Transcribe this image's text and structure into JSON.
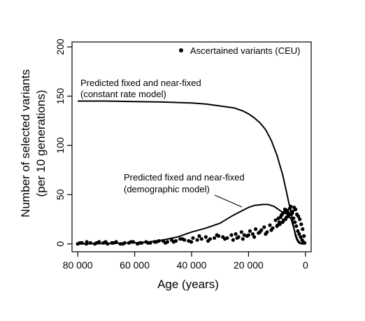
{
  "chart_data": {
    "type": "scatter",
    "title": "",
    "xlabel": "Age (years)",
    "ylabel": [
      "Number of selected variants",
      "(per 10 generations)"
    ],
    "xlim": [
      82000,
      -2000
    ],
    "ylim": [
      -8,
      205
    ],
    "x_reversed": true,
    "grid": false,
    "legend": {
      "position": "top-right",
      "entries": [
        "Ascertained variants (CEU)"
      ]
    },
    "x_ticks": [
      {
        "value": 80000,
        "label": "80 000"
      },
      {
        "value": 60000,
        "label": "60 000"
      },
      {
        "value": 40000,
        "label": "40 000"
      },
      {
        "value": 20000,
        "label": "20 000"
      },
      {
        "value": 0,
        "label": "0"
      }
    ],
    "y_ticks": [
      {
        "value": 0,
        "label": "0"
      },
      {
        "value": 50,
        "label": "50"
      },
      {
        "value": 100,
        "label": "100"
      },
      {
        "value": 150,
        "label": "150"
      },
      {
        "value": 200,
        "label": "200"
      }
    ],
    "annotations": [
      {
        "lines": [
          "Predicted fixed and near-fixed",
          "(constant rate model)"
        ],
        "x": 80000,
        "y": 162
      },
      {
        "lines": [
          "Predicted fixed and near-fixed",
          "(demographic model)"
        ],
        "x": 47000,
        "y": 66
      }
    ],
    "series": [
      {
        "name": "constant-rate-model",
        "kind": "line",
        "x": [
          80000,
          70000,
          60000,
          50000,
          40000,
          35000,
          30000,
          25000,
          22000,
          20000,
          18000,
          16000,
          14000,
          12000,
          10000,
          9000,
          8000,
          7000,
          6000,
          5000,
          4000,
          3500,
          3000,
          2500,
          2000,
          1500,
          1000,
          0
        ],
        "y": [
          145,
          145,
          144.5,
          144,
          143,
          142,
          140,
          138,
          135,
          132,
          128,
          123,
          116,
          105,
          90,
          80,
          70,
          57,
          44,
          30,
          15,
          8,
          4,
          1.5,
          0.5,
          0.2,
          0,
          0
        ]
      },
      {
        "name": "demographic-model",
        "kind": "line",
        "x": [
          80000,
          70000,
          60000,
          55000,
          50000,
          45000,
          40000,
          35000,
          30000,
          26000,
          22000,
          20000,
          18000,
          15000,
          13000,
          11000,
          10000,
          9000,
          8000,
          7000,
          6000,
          5000,
          4500,
          4000,
          3500,
          3000,
          2500,
          2000,
          1500,
          1000,
          0
        ],
        "y": [
          0,
          0.3,
          1,
          2,
          4,
          7,
          12,
          16,
          21,
          28,
          34,
          37,
          39,
          40,
          40,
          38,
          36,
          34,
          32,
          31,
          29,
          25,
          20,
          15,
          10,
          6,
          3,
          1.5,
          0.5,
          0.2,
          0
        ]
      },
      {
        "name": "Ascertained variants (CEU)",
        "kind": "points",
        "x": [
          80000,
          78500,
          77000,
          75500,
          74000,
          72500,
          71000,
          69500,
          68000,
          66500,
          65000,
          63500,
          62000,
          60500,
          59000,
          57500,
          56000,
          54500,
          53000,
          51500,
          79200,
          76800,
          73300,
          70200,
          67400,
          64100,
          61300,
          58200,
          55300,
          52400,
          50000,
          48500,
          47000,
          45500,
          44000,
          42500,
          41000,
          39500,
          38000,
          36500,
          35000,
          33500,
          32000,
          30500,
          29000,
          27500,
          26000,
          49200,
          46300,
          43200,
          40100,
          37300,
          34200,
          31100,
          28300,
          25400,
          24500,
          23500,
          22500,
          21500,
          20500,
          19500,
          18500,
          17500,
          16500,
          15500,
          14500,
          13500,
          12500,
          11500,
          24000,
          22000,
          20000,
          18000,
          16000,
          14000,
          12000,
          10500,
          10000,
          9500,
          9000,
          8500,
          8000,
          7500,
          7000,
          6500,
          6000,
          5500,
          5000,
          4500,
          4000,
          3500,
          3000,
          2500,
          2000,
          1500,
          1000,
          500,
          9800,
          9200,
          8700,
          8200,
          7700,
          7200,
          6700,
          6200,
          5700,
          5200,
          4700,
          4200,
          3700,
          3200,
          2700,
          2200,
          1700,
          1200,
          800,
          300
        ],
        "y": [
          0,
          1,
          0,
          1,
          0,
          2,
          1,
          0,
          1,
          2,
          0,
          1,
          1,
          2,
          0,
          1,
          2,
          1,
          2,
          3,
          1,
          2,
          1,
          2,
          1,
          0,
          2,
          1,
          1,
          2,
          3,
          2,
          4,
          3,
          5,
          4,
          3,
          6,
          4,
          5,
          7,
          5,
          6,
          8,
          7,
          6,
          9,
          1,
          2,
          5,
          2,
          8,
          3,
          9,
          5,
          4,
          10,
          7,
          12,
          9,
          8,
          13,
          10,
          15,
          11,
          14,
          17,
          12,
          19,
          16,
          6,
          5,
          9,
          7,
          12,
          10,
          14,
          24,
          18,
          26,
          20,
          29,
          22,
          32,
          25,
          34,
          28,
          36,
          30,
          33,
          37,
          35,
          30,
          28,
          25,
          20,
          15,
          8,
          19,
          22,
          27,
          30,
          24,
          35,
          27,
          32,
          30,
          38,
          31,
          26,
          22,
          18,
          13,
          10,
          7,
          4,
          2,
          1
        ]
      }
    ]
  }
}
